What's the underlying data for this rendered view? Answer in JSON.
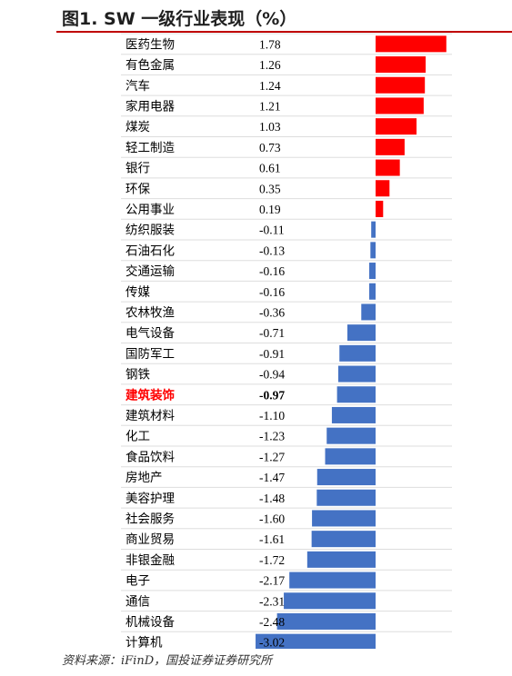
{
  "header": {
    "title": "图1. SW 一级行业表现（%）"
  },
  "footer": {
    "source": "资料来源：iFinD，国投证券证券研究所"
  },
  "colors": {
    "positive": "#ff0000",
    "negative": "#4472c4",
    "highlight_label": "#ff0000",
    "title_line": "#c00000",
    "gridline": "#dddddd"
  },
  "chart_data": {
    "type": "bar",
    "orientation": "horizontal",
    "title": "图1. SW 一级行业表现（%）",
    "grid": true,
    "highlight": "建筑装饰",
    "categories": [
      "医药生物",
      "有色金属",
      "汽车",
      "家用电器",
      "煤炭",
      "轻工制造",
      "银行",
      "环保",
      "公用事业",
      "纺织服装",
      "石油石化",
      "交通运输",
      "传媒",
      "农林牧渔",
      "电气设备",
      "国防军工",
      "钢铁",
      "建筑装饰",
      "建筑材料",
      "化工",
      "食品饮料",
      "房地产",
      "美容护理",
      "社会服务",
      "商业贸易",
      "非银金融",
      "电子",
      "通信",
      "机械设备",
      "计算机"
    ],
    "value_labels": [
      "1.78",
      "1.26",
      "1.24",
      "1.21",
      "1.03",
      "0.73",
      "0.61",
      "0.35",
      "0.19",
      "-0.11",
      "-0.13",
      "-0.16",
      "-0.16",
      "-0.36",
      "-0.71",
      "-0.91",
      "-0.94",
      "-0.97",
      "-1.10",
      "-1.23",
      "-1.27",
      "-1.47",
      "-1.48",
      "-1.60",
      "-1.61",
      "-1.72",
      "-2.17",
      "-2.31",
      "-2.48",
      "-3.02"
    ],
    "values": [
      1.78,
      1.26,
      1.24,
      1.21,
      1.03,
      0.73,
      0.61,
      0.35,
      0.19,
      -0.11,
      -0.13,
      -0.16,
      -0.16,
      -0.36,
      -0.71,
      -0.91,
      -0.94,
      -0.97,
      -1.1,
      -1.23,
      -1.27,
      -1.47,
      -1.48,
      -1.6,
      -1.61,
      -1.72,
      -2.17,
      -2.31,
      -2.48,
      -3.02
    ]
  }
}
